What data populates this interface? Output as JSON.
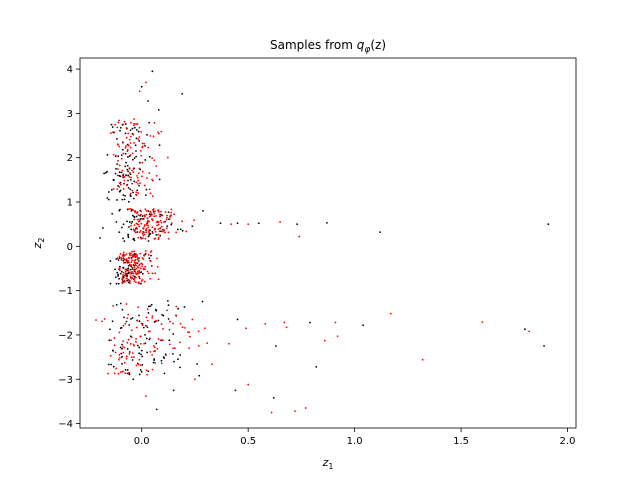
{
  "chart_data": {
    "type": "scatter",
    "title": "Samples from q_φ(z)",
    "title_parts": {
      "prefix": "Samples from ",
      "q": "q",
      "phi": "φ",
      "arg": "(z)"
    },
    "xlabel": {
      "main": "z",
      "sub": "1"
    },
    "ylabel": {
      "main": "z",
      "sub": "2"
    },
    "xlim": [
      -0.29,
      2.04
    ],
    "ylim": [
      -4.1,
      4.25
    ],
    "xticks": [
      0.0,
      0.5,
      1.0,
      1.5,
      2.0
    ],
    "xtick_labels": [
      "0.0",
      "0.5",
      "1.0",
      "1.5",
      "2.0"
    ],
    "yticks": [
      -4,
      -3,
      -2,
      -1,
      0,
      1,
      2,
      3,
      4
    ],
    "ytick_labels": [
      "−4",
      "−3",
      "−2",
      "−1",
      "0",
      "1",
      "2",
      "3",
      "4"
    ],
    "grid": false,
    "legend": "none",
    "series": [
      {
        "color": "#000000",
        "clusters": [
          {
            "n": 95,
            "x": [
              -0.18,
              0.14
            ],
            "y": [
              1.0,
              2.8
            ]
          },
          {
            "n": 70,
            "x": [
              -0.2,
              0.32
            ],
            "y": [
              0.1,
              0.85
            ]
          },
          {
            "n": 75,
            "x": [
              -0.15,
              0.12
            ],
            "y": [
              -0.85,
              -0.15
            ]
          },
          {
            "n": 95,
            "x": [
              -0.18,
              0.35
            ],
            "y": [
              -2.9,
              -1.2
            ]
          }
        ],
        "points": [
          [
            0.05,
            3.95
          ],
          [
            0.03,
            3.28
          ],
          [
            0.08,
            3.08
          ],
          [
            0.19,
            3.44
          ],
          [
            0.0,
            3.6
          ],
          [
            0.87,
            0.53
          ],
          [
            0.73,
            0.5
          ],
          [
            1.12,
            0.32
          ],
          [
            1.91,
            0.5
          ],
          [
            0.45,
            0.52
          ],
          [
            0.55,
            0.52
          ],
          [
            0.37,
            0.52
          ],
          [
            0.82,
            -2.72
          ],
          [
            0.63,
            -2.25
          ],
          [
            1.04,
            -1.78
          ],
          [
            1.8,
            -1.87
          ],
          [
            1.89,
            -2.25
          ],
          [
            0.44,
            -3.25
          ],
          [
            0.62,
            -3.42
          ],
          [
            0.07,
            -3.68
          ],
          [
            0.15,
            -3.25
          ],
          [
            0.27,
            -2.92
          ],
          [
            0.45,
            -1.65
          ],
          [
            0.79,
            -1.72
          ],
          [
            -0.04,
            -3.0
          ]
        ]
      },
      {
        "color": "#ff0000",
        "clusters": [
          {
            "n": 110,
            "x": [
              -0.16,
              0.2
            ],
            "y": [
              1.1,
              2.9
            ]
          },
          {
            "n": 140,
            "x": [
              -0.08,
              0.3
            ],
            "y": [
              0.15,
              0.85
            ]
          },
          {
            "n": 150,
            "x": [
              -0.12,
              0.12
            ],
            "y": [
              -0.85,
              -0.1
            ]
          },
          {
            "n": 110,
            "x": [
              -0.22,
              0.4
            ],
            "y": [
              -2.9,
              -1.3
            ]
          }
        ],
        "points": [
          [
            -0.01,
            3.5
          ],
          [
            0.02,
            3.7
          ],
          [
            0.65,
            0.55
          ],
          [
            0.74,
            0.22
          ],
          [
            0.5,
            0.5
          ],
          [
            0.42,
            0.5
          ],
          [
            1.17,
            -1.52
          ],
          [
            1.6,
            -1.71
          ],
          [
            1.82,
            -1.92
          ],
          [
            1.32,
            -2.56
          ],
          [
            0.92,
            -2.03
          ],
          [
            0.86,
            -2.13
          ],
          [
            0.91,
            -1.72
          ],
          [
            0.68,
            -1.83
          ],
          [
            0.58,
            -1.75
          ],
          [
            0.77,
            -3.65
          ],
          [
            0.72,
            -3.72
          ],
          [
            0.61,
            -3.75
          ],
          [
            0.5,
            -3.12
          ],
          [
            0.41,
            -2.2
          ],
          [
            0.49,
            -1.85
          ],
          [
            0.33,
            -2.66
          ],
          [
            0.02,
            -3.38
          ],
          [
            0.25,
            -3.0
          ],
          [
            0.67,
            -1.72
          ]
        ]
      }
    ]
  }
}
